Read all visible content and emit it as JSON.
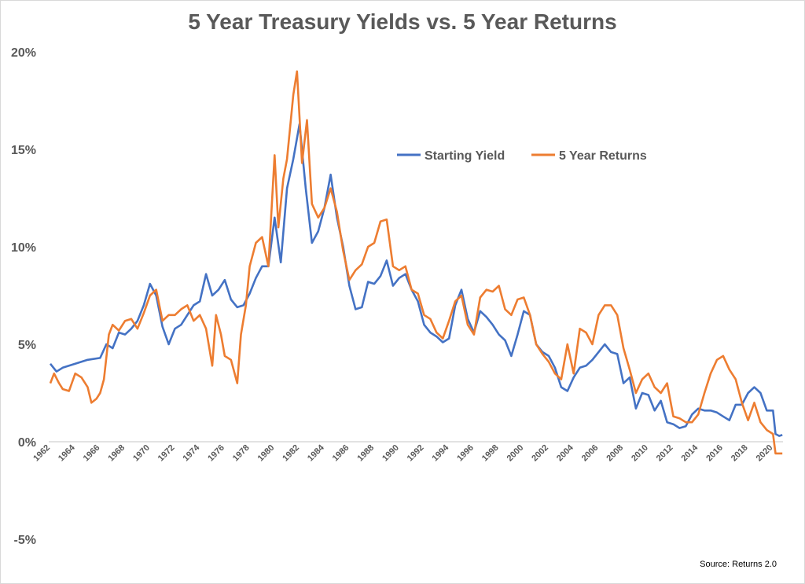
{
  "chart_data": {
    "type": "line",
    "title": "5 Year Treasury Yields vs. 5 Year Returns",
    "source": "Source: Returns 2.0",
    "xlabel": "",
    "ylabel": "",
    "ylim": [
      -5,
      20
    ],
    "yticks": [
      "-5%",
      "0%",
      "5%",
      "10%",
      "15%",
      "20%"
    ],
    "xlim": [
      1962,
      2020.8
    ],
    "xticks": [
      "1962",
      "1964",
      "1966",
      "1968",
      "1970",
      "1972",
      "1974",
      "1976",
      "1978",
      "1980",
      "1982",
      "1984",
      "1986",
      "1988",
      "1990",
      "1992",
      "1994",
      "1996",
      "1998",
      "2000",
      "2002",
      "2004",
      "2006",
      "2008",
      "2010",
      "2012",
      "2014",
      "2016",
      "2018",
      "2020"
    ],
    "grid": false,
    "legend": "top-right",
    "series": [
      {
        "name": "Starting Yield",
        "color": "#4472C4",
        "x": [
          1962,
          1962.5,
          1963,
          1964,
          1965,
          1966,
          1966.5,
          1967,
          1967.5,
          1968,
          1968.5,
          1969,
          1969.5,
          1970,
          1970.5,
          1971,
          1971.5,
          1972,
          1972.5,
          1973,
          1973.5,
          1974,
          1974.5,
          1975,
          1975.5,
          1976,
          1976.5,
          1977,
          1977.5,
          1978,
          1978.5,
          1979,
          1979.5,
          1980,
          1980.5,
          1981,
          1981.5,
          1982,
          1982.5,
          1983,
          1983.5,
          1984,
          1984.5,
          1985,
          1985.5,
          1986,
          1986.5,
          1987,
          1987.5,
          1988,
          1988.5,
          1989,
          1989.5,
          1990,
          1990.5,
          1991,
          1991.5,
          1992,
          1992.5,
          1993,
          1993.5,
          1994,
          1994.5,
          1995,
          1995.5,
          1996,
          1996.5,
          1997,
          1997.5,
          1998,
          1998.5,
          1999,
          1999.5,
          2000,
          2000.5,
          2001,
          2001.5,
          2002,
          2002.5,
          2003,
          2003.5,
          2004,
          2004.5,
          2005,
          2005.5,
          2006,
          2006.5,
          2007,
          2007.5,
          2008,
          2008.5,
          2009,
          2009.5,
          2010,
          2010.5,
          2011,
          2011.5,
          2012,
          2012.5,
          2013,
          2013.5,
          2014,
          2014.5,
          2015,
          2015.5,
          2016,
          2016.5,
          2017,
          2017.5,
          2018,
          2018.5,
          2019,
          2019.5,
          2020,
          2020.2,
          2020.5,
          2020.75
        ],
        "y": [
          4.0,
          3.6,
          3.8,
          4.0,
          4.2,
          4.3,
          5.0,
          4.8,
          5.6,
          5.5,
          5.8,
          6.2,
          7.0,
          8.1,
          7.5,
          5.9,
          5.0,
          5.8,
          6.0,
          6.5,
          7.0,
          7.2,
          8.6,
          7.5,
          7.8,
          8.3,
          7.3,
          6.9,
          7.0,
          7.6,
          8.4,
          9.0,
          9.0,
          11.5,
          9.2,
          13.0,
          14.5,
          16.3,
          13.0,
          10.2,
          10.8,
          12.0,
          13.7,
          11.5,
          10.0,
          8.0,
          6.8,
          6.9,
          8.2,
          8.1,
          8.5,
          9.3,
          8.0,
          8.4,
          8.6,
          7.8,
          7.2,
          6.0,
          5.6,
          5.4,
          5.1,
          5.3,
          7.0,
          7.8,
          6.3,
          5.6,
          6.7,
          6.4,
          6.0,
          5.5,
          5.2,
          4.4,
          5.5,
          6.7,
          6.5,
          5.0,
          4.6,
          4.4,
          3.8,
          2.8,
          2.6,
          3.3,
          3.8,
          3.9,
          4.2,
          4.6,
          5.0,
          4.6,
          4.5,
          3.0,
          3.3,
          1.7,
          2.5,
          2.4,
          1.6,
          2.1,
          1.0,
          0.9,
          0.7,
          0.8,
          1.4,
          1.7,
          1.6,
          1.6,
          1.5,
          1.3,
          1.1,
          1.9,
          1.9,
          2.5,
          2.8,
          2.5,
          1.6,
          1.6,
          0.4,
          0.3,
          0.35
        ]
      },
      {
        "name": "5 Year Returns",
        "color": "#ED7D31",
        "x": [
          1962,
          1962.3,
          1962.7,
          1963,
          1963.5,
          1964,
          1964.5,
          1965,
          1965.3,
          1965.7,
          1966,
          1966.3,
          1966.7,
          1967,
          1967.5,
          1968,
          1968.5,
          1969,
          1969.5,
          1970,
          1970.5,
          1971,
          1971.5,
          1972,
          1972.5,
          1973,
          1973.5,
          1974,
          1974.5,
          1975,
          1975.3,
          1975.7,
          1976,
          1976.5,
          1977,
          1977.3,
          1977.7,
          1978,
          1978.5,
          1979,
          1979.5,
          1980,
          1980.3,
          1980.7,
          1981,
          1981.5,
          1981.8,
          1982.2,
          1982.6,
          1983,
          1983.5,
          1984,
          1984.5,
          1985,
          1985.5,
          1986,
          1986.5,
          1987,
          1987.5,
          1988,
          1988.5,
          1989,
          1989.5,
          1990,
          1990.5,
          1991,
          1991.5,
          1992,
          1992.5,
          1993,
          1993.5,
          1994,
          1994.5,
          1995,
          1995.5,
          1996,
          1996.5,
          1997,
          1997.5,
          1998,
          1998.5,
          1999,
          1999.5,
          2000,
          2000.5,
          2001,
          2001.5,
          2002,
          2002.5,
          2003,
          2003.5,
          2004,
          2004.5,
          2005,
          2005.5,
          2006,
          2006.5,
          2007,
          2007.5,
          2008,
          2008.5,
          2009,
          2009.5,
          2010,
          2010.5,
          2011,
          2011.5,
          2012,
          2012.5,
          2013,
          2013.5,
          2014,
          2014.5,
          2015,
          2015.5,
          2016,
          2016.5,
          2017,
          2017.5,
          2018,
          2018.5,
          2019,
          2019.5,
          2020,
          2020.2,
          2020.75
        ],
        "y": [
          3.0,
          3.5,
          3.0,
          2.7,
          2.6,
          3.5,
          3.3,
          2.8,
          2.0,
          2.2,
          2.5,
          3.2,
          5.5,
          6.0,
          5.7,
          6.2,
          6.3,
          5.8,
          6.6,
          7.5,
          7.8,
          6.2,
          6.5,
          6.5,
          6.8,
          7.0,
          6.2,
          6.5,
          5.8,
          3.9,
          6.5,
          5.5,
          4.4,
          4.2,
          3.0,
          5.5,
          7.0,
          9.0,
          10.2,
          10.5,
          9.0,
          14.7,
          11.0,
          13.5,
          14.5,
          17.8,
          19.0,
          14.3,
          16.5,
          12.2,
          11.5,
          12.0,
          13.0,
          11.8,
          9.8,
          8.3,
          8.8,
          9.1,
          10.0,
          10.2,
          11.3,
          11.4,
          9.0,
          8.8,
          9.0,
          7.8,
          7.6,
          6.5,
          6.3,
          5.6,
          5.3,
          6.2,
          7.2,
          7.5,
          6.0,
          5.5,
          7.4,
          7.8,
          7.7,
          8.0,
          6.8,
          6.5,
          7.3,
          7.4,
          6.5,
          5.0,
          4.5,
          4.1,
          3.5,
          3.2,
          5.0,
          3.5,
          5.8,
          5.6,
          5.0,
          6.5,
          7.0,
          7.0,
          6.5,
          4.8,
          3.7,
          2.5,
          3.2,
          3.5,
          2.8,
          2.5,
          3.0,
          1.3,
          1.2,
          1.0,
          1.0,
          1.4,
          2.5,
          3.5,
          4.2,
          4.4,
          3.7,
          3.2,
          2.0,
          1.1,
          2.0,
          1.0,
          0.6,
          0.4,
          -0.6,
          -0.6
        ]
      }
    ]
  }
}
